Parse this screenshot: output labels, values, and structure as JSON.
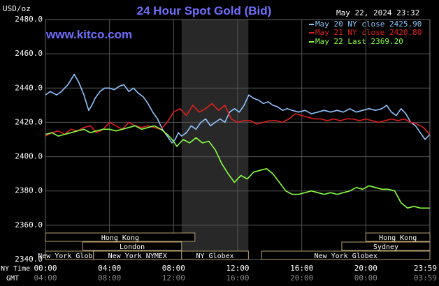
{
  "header": {
    "unit": "USD/oz",
    "title": "24 Hour Spot Gold (Bid)",
    "datetime": "May 22, 2024 23:32",
    "watermark": "www.kitco.com"
  },
  "legend": [
    {
      "label": "May 20 NY close 2425.90",
      "color": "#8fc4ff"
    },
    {
      "label": "May 21 NY close 2420.80",
      "color": "#e02020"
    },
    {
      "label": "May 22 Last 2369.20",
      "color": "#88ff44"
    }
  ],
  "sessions": {
    "row1": [
      {
        "label": "Hong Kong",
        "from": 0.0,
        "to": 9.33
      },
      {
        "label": "Hong Kong",
        "to": 24.0,
        "from": 20.0
      }
    ],
    "row2": [
      {
        "label": "London",
        "from": 2.33,
        "to": 8.5
      },
      {
        "label": "Sydney",
        "from": 18.5,
        "to": 24.0
      }
    ],
    "row3": [
      {
        "label": "New York Globex",
        "from": 0.0,
        "to": 3.0
      },
      {
        "label": "New York NYMEX",
        "from": 3.0,
        "to": 8.5
      },
      {
        "label": "NY Globex",
        "from": 8.5,
        "to": 12.67
      },
      {
        "label": "New York Globex",
        "from": 13.5,
        "to": 24.0
      }
    ]
  },
  "time_axis": {
    "ny_label": "NY Time",
    "gmt_label": "GMT",
    "ny_ticks": [
      "00:00",
      "04:00",
      "08:00",
      "12:00",
      "16:00",
      "20:00",
      "23:59"
    ],
    "gmt_ticks": [
      "04:00",
      "08:00",
      "12:00",
      "16:00",
      "20:00",
      "00:00",
      "03:59"
    ]
  },
  "chart_data": {
    "type": "line",
    "title": "24 Hour Spot Gold (Bid)",
    "ylabel": "USD/oz",
    "xlabel": "NY Time",
    "ylim": [
      2340,
      2480
    ],
    "xlim": [
      0,
      24
    ],
    "yticks": [
      2340,
      2360,
      2380,
      2400,
      2420,
      2440,
      2460,
      2480
    ],
    "ytick_labels": [
      "2340.0",
      "2360.0",
      "2380.0",
      "2400.0",
      "2420.0",
      "2440.0",
      "2460.0",
      "2480.0"
    ],
    "grid": true,
    "shaded_x_range": [
      8.5,
      12.67
    ],
    "x_unit": "hours since 00:00 NY time",
    "series": [
      {
        "name": "May 20 NY close 2425.90",
        "color": "#8fc4ff",
        "x": [
          0,
          0.3,
          0.7,
          1.0,
          1.4,
          1.8,
          2.1,
          2.4,
          2.7,
          2.9,
          3.1,
          3.4,
          3.7,
          4.0,
          4.3,
          4.6,
          4.9,
          5.2,
          5.5,
          5.8,
          6.1,
          6.4,
          6.7,
          7.0,
          7.3,
          7.6,
          7.9,
          8.1,
          8.3,
          8.5,
          8.8,
          9.1,
          9.4,
          9.7,
          10.0,
          10.3,
          10.6,
          10.9,
          11.2,
          11.5,
          11.8,
          12.1,
          12.4,
          12.7,
          13.0,
          13.3,
          13.6,
          13.9,
          14.2,
          14.5,
          14.8,
          15.1,
          15.4,
          15.8,
          16.2,
          16.6,
          17.0,
          17.4,
          17.8,
          18.2,
          18.6,
          19.0,
          19.4,
          19.8,
          20.2,
          20.6,
          21.0,
          21.3,
          21.6,
          21.9,
          22.2,
          22.5,
          22.8,
          23.1,
          23.4,
          23.7,
          23.99
        ],
        "y": [
          2436,
          2438,
          2436,
          2438,
          2442,
          2448,
          2443,
          2436,
          2427,
          2430,
          2434,
          2438,
          2440,
          2440,
          2439,
          2441,
          2442,
          2438,
          2440,
          2437,
          2435,
          2431,
          2426,
          2422,
          2416,
          2412,
          2408,
          2410,
          2414,
          2412,
          2414,
          2418,
          2416,
          2420,
          2422,
          2418,
          2420,
          2422,
          2420,
          2426,
          2428,
          2426,
          2430,
          2436,
          2434,
          2433,
          2431,
          2432,
          2430,
          2429,
          2427,
          2428,
          2427,
          2426,
          2427,
          2425,
          2426,
          2427,
          2426,
          2427,
          2426,
          2428,
          2426,
          2427,
          2428,
          2427,
          2428,
          2430,
          2426,
          2424,
          2428,
          2425,
          2420,
          2418,
          2414,
          2410,
          2413
        ]
      },
      {
        "name": "May 21 NY close 2420.80",
        "color": "#e02020",
        "x": [
          0,
          0.4,
          0.8,
          1.2,
          1.6,
          2.0,
          2.4,
          2.8,
          3.2,
          3.6,
          4.0,
          4.4,
          4.8,
          5.2,
          5.6,
          6.0,
          6.4,
          6.8,
          7.2,
          7.6,
          8.0,
          8.4,
          8.8,
          9.2,
          9.6,
          10.0,
          10.4,
          10.8,
          11.2,
          11.6,
          12.0,
          12.4,
          12.8,
          13.2,
          13.6,
          14.0,
          14.4,
          14.8,
          15.2,
          15.6,
          16.0,
          16.4,
          16.8,
          17.2,
          17.6,
          18.0,
          18.4,
          18.8,
          19.2,
          19.6,
          20.0,
          20.4,
          20.8,
          21.2,
          21.6,
          22.0,
          22.4,
          22.8,
          23.2,
          23.6,
          23.99
        ],
        "y": [
          2412,
          2414,
          2415,
          2413,
          2416,
          2415,
          2417,
          2418,
          2414,
          2416,
          2420,
          2418,
          2416,
          2420,
          2418,
          2417,
          2418,
          2417,
          2416,
          2420,
          2426,
          2428,
          2424,
          2430,
          2426,
          2428,
          2431,
          2427,
          2430,
          2422,
          2420,
          2421,
          2421,
          2419,
          2420,
          2421,
          2421,
          2420,
          2422,
          2425,
          2424,
          2423,
          2422,
          2422,
          2421,
          2422,
          2421,
          2422,
          2422,
          2421,
          2422,
          2421,
          2420,
          2421,
          2422,
          2421,
          2422,
          2420,
          2419,
          2417,
          2413
        ]
      },
      {
        "name": "May 22 Last 2369.20",
        "color": "#88ff44",
        "x": [
          0,
          0.4,
          0.8,
          1.2,
          1.6,
          2.0,
          2.4,
          2.8,
          3.2,
          3.6,
          4.0,
          4.4,
          4.8,
          5.2,
          5.6,
          6.0,
          6.4,
          6.8,
          7.2,
          7.6,
          8.0,
          8.2,
          8.6,
          9.0,
          9.4,
          9.8,
          10.2,
          10.6,
          11.0,
          11.4,
          11.8,
          12.2,
          12.6,
          13.0,
          13.4,
          13.8,
          14.2,
          14.6,
          15.0,
          15.4,
          15.8,
          16.2,
          16.6,
          17.0,
          17.4,
          17.8,
          18.2,
          18.6,
          19.0,
          19.4,
          19.8,
          20.2,
          20.6,
          21.0,
          21.4,
          21.8,
          22.2,
          22.6,
          23.0,
          23.4,
          23.8,
          23.99
        ],
        "y": [
          2413,
          2414,
          2412,
          2413,
          2414,
          2415,
          2416,
          2414,
          2415,
          2416,
          2416,
          2415,
          2416,
          2417,
          2418,
          2416,
          2417,
          2418,
          2416,
          2413,
          2409,
          2406,
          2410,
          2408,
          2411,
          2408,
          2409,
          2404,
          2396,
          2390,
          2385,
          2389,
          2387,
          2391,
          2392,
          2393,
          2390,
          2385,
          2380,
          2378,
          2378,
          2379,
          2380,
          2379,
          2378,
          2379,
          2378,
          2379,
          2380,
          2382,
          2381,
          2383,
          2382,
          2381,
          2381,
          2380,
          2373,
          2370,
          2371,
          2370,
          2370,
          2370
        ]
      }
    ]
  }
}
